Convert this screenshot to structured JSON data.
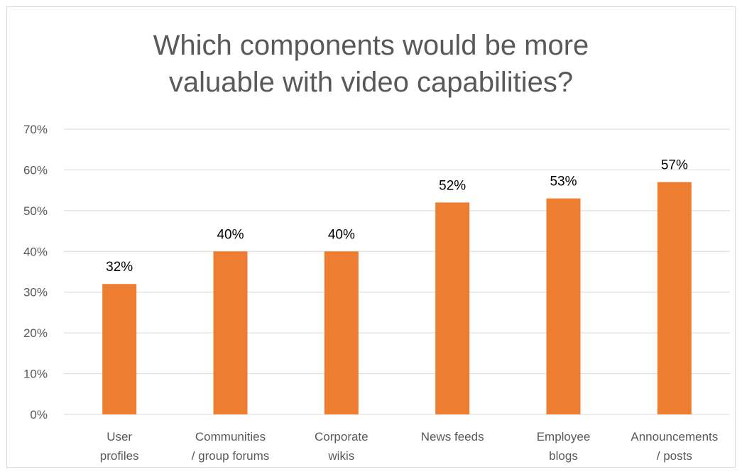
{
  "chart_data": {
    "type": "bar",
    "title_lines": [
      "Which components would be more",
      "valuable with video capabilities?"
    ],
    "categories": [
      [
        "User",
        "profiles"
      ],
      [
        "Communities",
        "/ group forums"
      ],
      [
        "Corporate",
        "wikis"
      ],
      [
        "News feeds"
      ],
      [
        "Employee",
        "blogs"
      ],
      [
        "Announcements",
        "/ posts"
      ]
    ],
    "values": [
      32,
      40,
      40,
      52,
      53,
      57
    ],
    "data_labels": [
      "32%",
      "40%",
      "40%",
      "52%",
      "53%",
      "57%"
    ],
    "ylim": [
      0,
      70
    ],
    "y_ticks": [
      "0%",
      "10%",
      "20%",
      "30%",
      "40%",
      "50%",
      "60%",
      "70%"
    ],
    "bar_color": "#ed7d31",
    "gridline_color": "#d9d9d9",
    "grid": true,
    "legend": "none"
  }
}
